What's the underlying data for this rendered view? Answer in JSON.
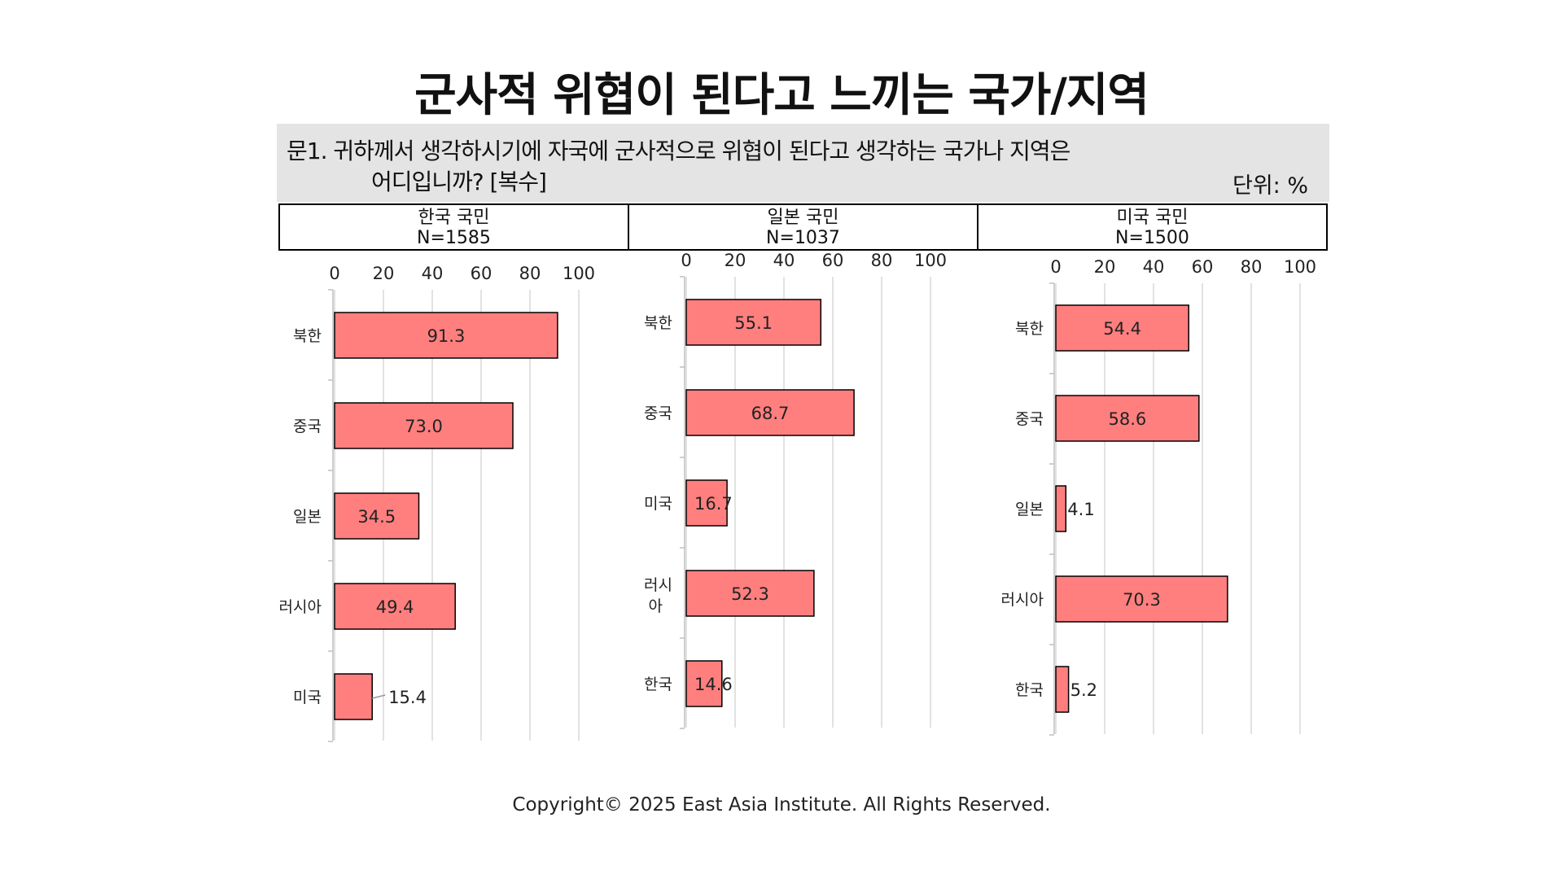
{
  "title": "군사적 위협이 된다고 느끼는 국가/지역",
  "question": {
    "line1": "문1. 귀하께서 생각하시기에 자국에 군사적으로 위협이 된다고 생각하는 국가나 지역은",
    "line2": "어디입니까? [복수]",
    "unit": "단위: %"
  },
  "headers": [
    {
      "label": "한국 국민",
      "n": "N=1585"
    },
    {
      "label": "일본 국민",
      "n": "N=1037"
    },
    {
      "label": "미국 국민",
      "n": "N=1500"
    }
  ],
  "colors": {
    "bar": "#ff7f7f",
    "bar_border": "#000000",
    "grid": "#d9d9d9"
  },
  "chart_data": [
    {
      "type": "bar",
      "orientation": "horizontal",
      "categories": [
        "북한",
        "중국",
        "일본",
        "러시아",
        "미국"
      ],
      "values": [
        91.3,
        73.0,
        34.5,
        49.4,
        15.4
      ],
      "value_labels": [
        "91.3",
        "73.0",
        "34.5",
        "49.4",
        "15.4"
      ],
      "xlim": [
        0,
        100
      ],
      "ticks": [
        0,
        20,
        40,
        60,
        80,
        100
      ],
      "grid": true
    },
    {
      "type": "bar",
      "orientation": "horizontal",
      "categories": [
        "북한",
        "중국",
        "미국",
        "러시아",
        "한국"
      ],
      "values": [
        55.1,
        68.7,
        16.7,
        52.3,
        14.6
      ],
      "value_labels": [
        "55.1",
        "68.7",
        "16.7",
        "52.3",
        "14.6"
      ],
      "xlim": [
        0,
        100
      ],
      "ticks": [
        0,
        20,
        40,
        60,
        80,
        100
      ],
      "grid": true
    },
    {
      "type": "bar",
      "orientation": "horizontal",
      "categories": [
        "북한",
        "중국",
        "일본",
        "러시아",
        "한국"
      ],
      "values": [
        54.4,
        58.6,
        4.1,
        70.3,
        5.2
      ],
      "value_labels": [
        "54.4",
        "58.6",
        "4.1",
        "70.3",
        "5.2"
      ],
      "xlim": [
        0,
        100
      ],
      "ticks": [
        0,
        20,
        40,
        60,
        80,
        100
      ],
      "grid": true
    }
  ],
  "footer": "Copyright© 2025 East Asia Institute. All Rights Reserved."
}
